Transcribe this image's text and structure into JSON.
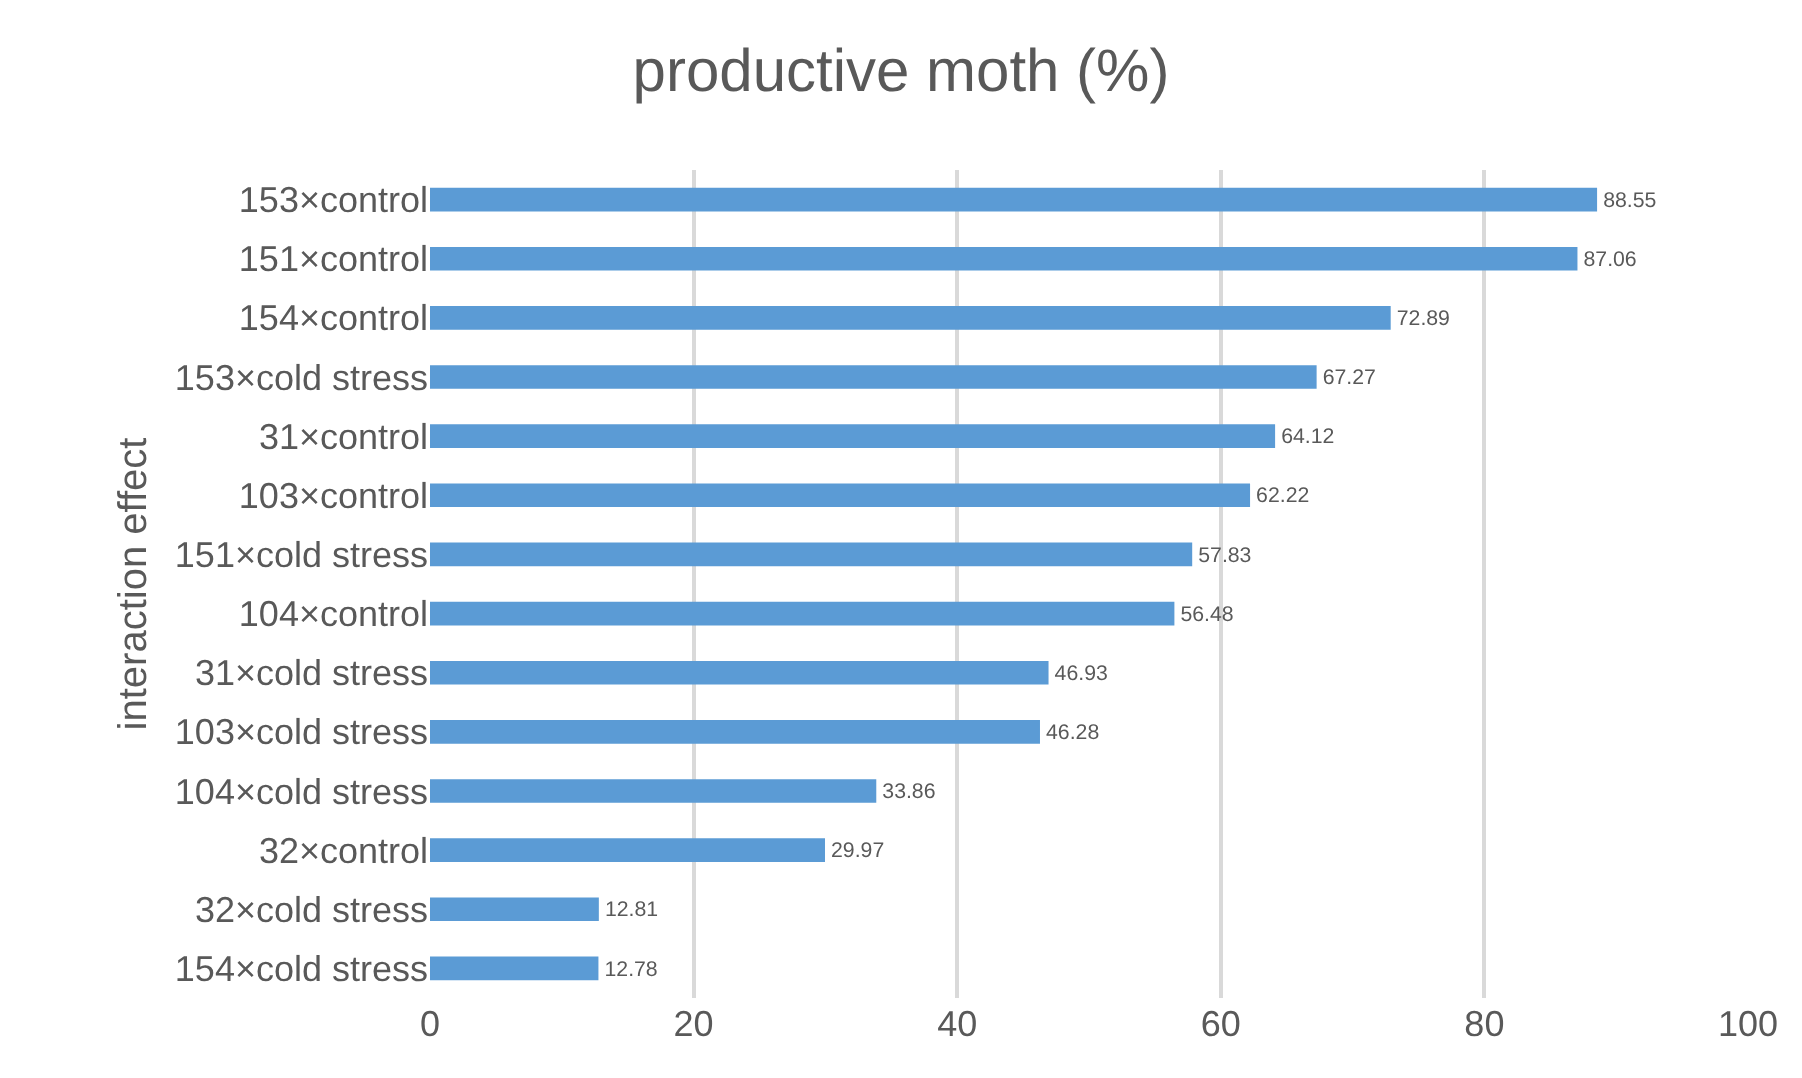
{
  "chart_data": {
    "type": "bar",
    "orientation": "horizontal",
    "title": "productive moth (%)",
    "ylabel": "interaction effect",
    "categories": [
      "153×control",
      "151×control",
      "154×control",
      "153×cold stress",
      "31×control",
      "103×control",
      "151×cold stress",
      "104×control",
      "31×cold stress",
      "103×cold stress",
      "104×cold stress",
      "32×control",
      "32×cold stress",
      "154×cold stress"
    ],
    "values": [
      88.55,
      87.06,
      72.89,
      67.27,
      64.12,
      62.22,
      57.83,
      56.48,
      46.93,
      46.28,
      33.86,
      29.97,
      12.81,
      12.78
    ],
    "color": "#5b9bd5",
    "xlim": [
      0,
      100
    ],
    "xticks": [
      0,
      20,
      40,
      60,
      80,
      100
    ],
    "grid": "x",
    "data_labels": true,
    "legend": false
  }
}
